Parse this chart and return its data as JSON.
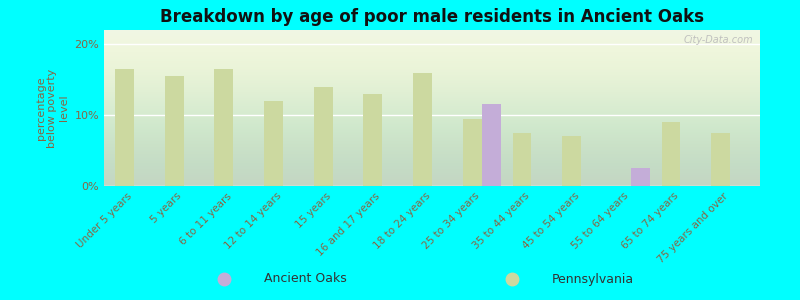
{
  "title": "Breakdown by age of poor male residents in Ancient Oaks",
  "ylabel": "percentage\nbelow poverty\nlevel",
  "background_color": "#00FFFF",
  "categories": [
    "Under 5 years",
    "5 years",
    "6 to 11 years",
    "12 to 14 years",
    "15 years",
    "16 and 17 years",
    "18 to 24 years",
    "25 to 34 years",
    "35 to 44 years",
    "45 to 54 years",
    "55 to 64 years",
    "65 to 74 years",
    "75 years and over"
  ],
  "ancient_oaks": [
    null,
    null,
    null,
    null,
    null,
    null,
    null,
    11.5,
    null,
    null,
    2.5,
    null,
    null
  ],
  "pennsylvania": [
    16.5,
    15.5,
    16.5,
    12.0,
    14.0,
    13.0,
    16.0,
    9.5,
    7.5,
    7.0,
    null,
    9.0,
    7.5
  ],
  "ao_color": "#c4add8",
  "pa_color": "#ccd9a0",
  "bar_width": 0.38,
  "ylim": [
    0,
    22
  ],
  "yticks": [
    0,
    10,
    20
  ],
  "ytick_labels": [
    "0%",
    "10%",
    "20%"
  ],
  "watermark": "City-Data.com",
  "legend_ao": "Ancient Oaks",
  "legend_pa": "Pennsylvania",
  "title_fontsize": 12,
  "ylabel_fontsize": 8,
  "xlabel_fontsize": 7.5,
  "ytick_fontsize": 8,
  "label_color": "#886644",
  "title_color": "#111111"
}
